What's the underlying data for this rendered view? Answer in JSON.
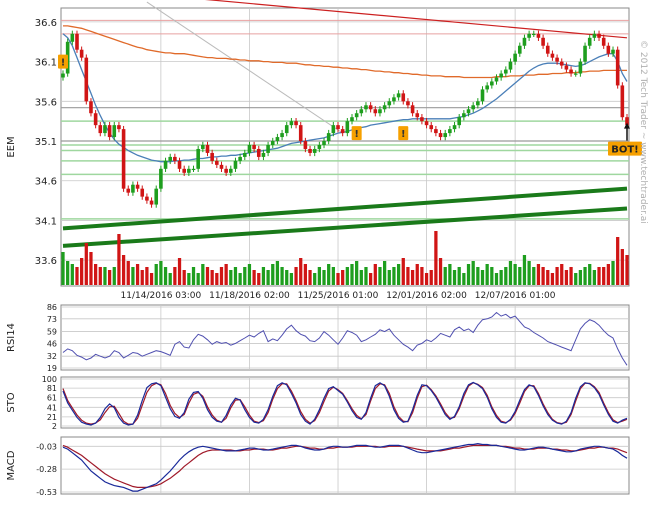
{
  "watermark": "© 2012 Tech Trader ~ www.techtrader.ai",
  "colors": {
    "up": "#1e9e1e",
    "down": "#d01515",
    "trend": "#1a7a1a",
    "ma_blue": "#4a7fb8",
    "ma_orange": "#e06a2a",
    "ma_red": "#cc2020",
    "rsi_line": "#5050b0",
    "sto_k": "#1a2a9a",
    "sto_d": "#a01a2a",
    "grid": "#c8c8c8",
    "marker": "#f6a000"
  },
  "chart_data": [
    {
      "type": "candlestick",
      "ylabel": "EEM",
      "ylim": [
        33.35,
        36.75
      ],
      "yticks": [
        33.6,
        34.1,
        34.6,
        35.1,
        35.6,
        36.1,
        36.6
      ],
      "xtick_labels": [
        "11/14/2016 03:00",
        "11/18/2016 02:00",
        "11/25/2016 01:00",
        "12/01/2016 02:00",
        "12/07/2016 01:00"
      ],
      "xtick_index": [
        21,
        40,
        59,
        78,
        97
      ],
      "bar_count": 122,
      "close": [
        35.95,
        36.35,
        36.45,
        36.25,
        36.15,
        35.6,
        35.45,
        35.3,
        35.2,
        35.3,
        35.15,
        35.3,
        35.25,
        34.5,
        34.45,
        34.55,
        34.5,
        34.4,
        34.35,
        34.3,
        34.5,
        34.75,
        34.85,
        34.9,
        34.85,
        34.75,
        34.7,
        34.75,
        34.75,
        35.0,
        35.05,
        34.95,
        34.85,
        34.8,
        34.75,
        34.7,
        34.75,
        34.85,
        34.9,
        34.95,
        35.05,
        35.0,
        34.9,
        34.95,
        35.05,
        35.1,
        35.15,
        35.2,
        35.3,
        35.35,
        35.3,
        35.1,
        35.0,
        34.95,
        35.0,
        35.05,
        35.1,
        35.2,
        35.3,
        35.25,
        35.2,
        35.35,
        35.4,
        35.45,
        35.5,
        35.55,
        35.5,
        35.45,
        35.5,
        35.55,
        35.6,
        35.65,
        35.7,
        35.6,
        35.55,
        35.45,
        35.4,
        35.35,
        35.3,
        35.25,
        35.2,
        35.15,
        35.2,
        35.25,
        35.3,
        35.4,
        35.45,
        35.5,
        35.55,
        35.6,
        35.75,
        35.8,
        35.85,
        35.9,
        35.95,
        36.0,
        36.1,
        36.2,
        36.3,
        36.4,
        36.45,
        36.45,
        36.4,
        36.3,
        36.2,
        36.15,
        36.1,
        36.05,
        36.0,
        35.95,
        35.95,
        36.1,
        36.3,
        36.4,
        36.45,
        36.4,
        36.3,
        36.2,
        36.25,
        35.8,
        35.4,
        35.3
      ]
    },
    {
      "type": "bar",
      "name": "volume",
      "bar_count": 122,
      "values": [
        0.55,
        0.4,
        0.35,
        0.3,
        0.45,
        0.7,
        0.55,
        0.35,
        0.3,
        0.3,
        0.25,
        0.3,
        0.85,
        0.5,
        0.4,
        0.3,
        0.35,
        0.25,
        0.3,
        0.2,
        0.35,
        0.4,
        0.3,
        0.2,
        0.3,
        0.45,
        0.25,
        0.2,
        0.3,
        0.2,
        0.35,
        0.3,
        0.25,
        0.2,
        0.3,
        0.35,
        0.25,
        0.3,
        0.2,
        0.3,
        0.35,
        0.25,
        0.2,
        0.3,
        0.25,
        0.35,
        0.4,
        0.3,
        0.25,
        0.2,
        0.3,
        0.45,
        0.35,
        0.25,
        0.2,
        0.3,
        0.25,
        0.35,
        0.3,
        0.2,
        0.25,
        0.3,
        0.35,
        0.4,
        0.25,
        0.3,
        0.2,
        0.35,
        0.3,
        0.4,
        0.25,
        0.3,
        0.35,
        0.45,
        0.3,
        0.25,
        0.35,
        0.3,
        0.2,
        0.25,
        0.9,
        0.45,
        0.3,
        0.35,
        0.25,
        0.3,
        0.2,
        0.35,
        0.4,
        0.3,
        0.25,
        0.35,
        0.3,
        0.2,
        0.25,
        0.3,
        0.4,
        0.35,
        0.3,
        0.5,
        0.4,
        0.3,
        0.35,
        0.3,
        0.25,
        0.2,
        0.3,
        0.35,
        0.25,
        0.3,
        0.2,
        0.25,
        0.3,
        0.35,
        0.25,
        0.3,
        0.3,
        0.35,
        0.4,
        0.8,
        0.6,
        0.5
      ]
    },
    {
      "type": "line",
      "ylabel": "RSI14",
      "ylim": [
        19,
        86
      ],
      "yticks": [
        19,
        32,
        46,
        59,
        73,
        86
      ],
      "bar_count": 122,
      "values": [
        36,
        40,
        38,
        33,
        31,
        28,
        30,
        34,
        32,
        30,
        32,
        38,
        36,
        30,
        33,
        36,
        35,
        32,
        34,
        36,
        38,
        37,
        35,
        33,
        45,
        48,
        42,
        41,
        50,
        56,
        54,
        50,
        45,
        48,
        46,
        47,
        44,
        46,
        49,
        52,
        55,
        53,
        57,
        60,
        48,
        51,
        49,
        55,
        62,
        66,
        60,
        56,
        54,
        49,
        48,
        52,
        59,
        55,
        50,
        45,
        52,
        60,
        58,
        55,
        48,
        50,
        53,
        56,
        61,
        59,
        62,
        55,
        50,
        45,
        42,
        38,
        44,
        46,
        50,
        48,
        52,
        57,
        55,
        53,
        61,
        64,
        60,
        62,
        58,
        66,
        72,
        73,
        75,
        80,
        76,
        78,
        74,
        76,
        70,
        64,
        62,
        58,
        55,
        52,
        48,
        46,
        44,
        42,
        40,
        38,
        50,
        62,
        68,
        72,
        70,
        66,
        60,
        55,
        52,
        40,
        30,
        22
      ]
    },
    {
      "type": "line",
      "ylabel": "STO",
      "ylim": [
        2,
        100
      ],
      "yticks": [
        2,
        21,
        41,
        61,
        81,
        100
      ],
      "bar_count": 122,
      "series": [
        {
          "values": [
            75,
            50,
            35,
            20,
            10,
            6,
            4,
            8,
            20,
            38,
            48,
            40,
            20,
            8,
            4,
            6,
            25,
            55,
            82,
            90,
            92,
            86,
            62,
            38,
            22,
            18,
            30,
            58,
            72,
            74,
            60,
            36,
            20,
            12,
            10,
            24,
            46,
            60,
            56,
            36,
            20,
            10,
            8,
            16,
            36,
            64,
            86,
            92,
            88,
            70,
            50,
            26,
            12,
            6,
            16,
            36,
            60,
            80,
            84,
            76,
            68,
            52,
            34,
            20,
            16,
            30,
            60,
            86,
            92,
            86,
            64,
            36,
            18,
            10,
            12,
            36,
            66,
            88,
            86,
            76,
            62,
            44,
            26,
            16,
            22,
            42,
            70,
            88,
            93,
            88,
            80,
            62,
            38,
            20,
            10,
            8,
            16,
            32,
            56,
            78,
            88,
            84,
            66,
            44,
            26,
            14,
            8,
            6,
            12,
            30,
            60,
            84,
            92,
            90,
            82,
            68,
            46,
            26,
            12,
            8,
            14,
            18
          ]
        },
        {
          "values": [
            80,
            55,
            40,
            25,
            14,
            8,
            6,
            8,
            15,
            30,
            42,
            43,
            28,
            12,
            6,
            6,
            18,
            45,
            72,
            86,
            91,
            88,
            70,
            45,
            28,
            20,
            26,
            50,
            68,
            72,
            64,
            42,
            25,
            14,
            10,
            18,
            40,
            56,
            57,
            42,
            25,
            12,
            9,
            13,
            30,
            58,
            80,
            90,
            90,
            75,
            55,
            32,
            16,
            8,
            13,
            30,
            53,
            75,
            83,
            78,
            70,
            55,
            38,
            24,
            17,
            26,
            54,
            80,
            90,
            88,
            70,
            42,
            22,
            12,
            11,
            30,
            60,
            84,
            87,
            78,
            65,
            48,
            30,
            18,
            20,
            38,
            64,
            85,
            92,
            89,
            82,
            66,
            42,
            24,
            12,
            9,
            14,
            28,
            50,
            74,
            86,
            86,
            70,
            48,
            30,
            16,
            9,
            7,
            10,
            26,
            54,
            80,
            91,
            91,
            84,
            72,
            50,
            30,
            15,
            9,
            12,
            16
          ]
        }
      ]
    },
    {
      "type": "line",
      "ylabel": "MACD",
      "ylim": [
        -0.53,
        0.05
      ],
      "yticks": [
        -0.53,
        -0.28,
        -0.03
      ],
      "bar_count": 122,
      "series": [
        {
          "values": [
            -0.04,
            -0.06,
            -0.1,
            -0.14,
            -0.18,
            -0.24,
            -0.3,
            -0.34,
            -0.38,
            -0.42,
            -0.44,
            -0.46,
            -0.47,
            -0.48,
            -0.5,
            -0.52,
            -0.52,
            -0.5,
            -0.48,
            -0.46,
            -0.44,
            -0.4,
            -0.35,
            -0.3,
            -0.24,
            -0.18,
            -0.13,
            -0.09,
            -0.06,
            -0.04,
            -0.03,
            -0.04,
            -0.05,
            -0.06,
            -0.07,
            -0.08,
            -0.08,
            -0.08,
            -0.07,
            -0.06,
            -0.05,
            -0.05,
            -0.06,
            -0.07,
            -0.07,
            -0.06,
            -0.05,
            -0.04,
            -0.03,
            -0.02,
            -0.02,
            -0.03,
            -0.05,
            -0.06,
            -0.07,
            -0.07,
            -0.06,
            -0.04,
            -0.03,
            -0.03,
            -0.04,
            -0.04,
            -0.03,
            -0.02,
            -0.02,
            -0.02,
            -0.03,
            -0.04,
            -0.04,
            -0.03,
            -0.02,
            -0.02,
            -0.02,
            -0.03,
            -0.05,
            -0.07,
            -0.09,
            -0.1,
            -0.1,
            -0.09,
            -0.08,
            -0.07,
            -0.06,
            -0.05,
            -0.04,
            -0.03,
            -0.02,
            -0.01,
            -0.01,
            0.0,
            -0.01,
            -0.01,
            -0.02,
            -0.02,
            -0.03,
            -0.04,
            -0.05,
            -0.06,
            -0.07,
            -0.07,
            -0.06,
            -0.05,
            -0.04,
            -0.04,
            -0.05,
            -0.06,
            -0.07,
            -0.08,
            -0.09,
            -0.09,
            -0.08,
            -0.06,
            -0.05,
            -0.04,
            -0.03,
            -0.03,
            -0.04,
            -0.05,
            -0.06,
            -0.09,
            -0.13,
            -0.16
          ]
        },
        {
          "values": [
            -0.02,
            -0.04,
            -0.07,
            -0.1,
            -0.13,
            -0.17,
            -0.21,
            -0.25,
            -0.29,
            -0.33,
            -0.36,
            -0.39,
            -0.41,
            -0.43,
            -0.45,
            -0.47,
            -0.48,
            -0.48,
            -0.48,
            -0.47,
            -0.46,
            -0.44,
            -0.41,
            -0.38,
            -0.34,
            -0.3,
            -0.25,
            -0.21,
            -0.17,
            -0.13,
            -0.1,
            -0.08,
            -0.07,
            -0.07,
            -0.07,
            -0.07,
            -0.07,
            -0.08,
            -0.08,
            -0.07,
            -0.07,
            -0.06,
            -0.06,
            -0.06,
            -0.07,
            -0.07,
            -0.06,
            -0.05,
            -0.05,
            -0.04,
            -0.03,
            -0.03,
            -0.04,
            -0.05,
            -0.05,
            -0.06,
            -0.06,
            -0.05,
            -0.05,
            -0.04,
            -0.04,
            -0.04,
            -0.04,
            -0.03,
            -0.03,
            -0.03,
            -0.03,
            -0.03,
            -0.04,
            -0.04,
            -0.03,
            -0.03,
            -0.03,
            -0.03,
            -0.04,
            -0.05,
            -0.06,
            -0.07,
            -0.08,
            -0.08,
            -0.08,
            -0.08,
            -0.07,
            -0.06,
            -0.05,
            -0.05,
            -0.04,
            -0.03,
            -0.02,
            -0.02,
            -0.02,
            -0.02,
            -0.02,
            -0.02,
            -0.03,
            -0.03,
            -0.04,
            -0.05,
            -0.05,
            -0.06,
            -0.06,
            -0.06,
            -0.05,
            -0.05,
            -0.05,
            -0.06,
            -0.06,
            -0.07,
            -0.07,
            -0.08,
            -0.08,
            -0.07,
            -0.06,
            -0.05,
            -0.05,
            -0.04,
            -0.04,
            -0.05,
            -0.05,
            -0.06,
            -0.08,
            -0.1
          ]
        }
      ]
    }
  ],
  "overlays": {
    "ma_blue": [
      36.45,
      36.4,
      36.3,
      36.15,
      36.0,
      35.85,
      35.7,
      35.55,
      35.42,
      35.3,
      35.2,
      35.12,
      35.06,
      35.02,
      34.98,
      34.95,
      34.92,
      34.9,
      34.88,
      34.86,
      34.85,
      34.84,
      34.84,
      34.84,
      34.85,
      34.85,
      34.86,
      34.86,
      34.87,
      34.88,
      34.88,
      34.89,
      34.9,
      34.9,
      34.91,
      34.91,
      34.92,
      34.92,
      34.93,
      34.94,
      34.95,
      34.96,
      34.97,
      34.98,
      34.99,
      35.0,
      35.01,
      35.03,
      35.05,
      35.07,
      35.08,
      35.09,
      35.1,
      35.11,
      35.12,
      35.13,
      35.14,
      35.16,
      35.18,
      35.2,
      35.21,
      35.22,
      35.24,
      35.25,
      35.27,
      35.28,
      35.3,
      35.31,
      35.32,
      35.33,
      35.34,
      35.35,
      35.36,
      35.37,
      35.37,
      35.38,
      35.38,
      35.38,
      35.38,
      35.38,
      35.38,
      35.38,
      35.38,
      35.38,
      35.39,
      35.4,
      35.41,
      35.43,
      35.45,
      35.48,
      35.51,
      35.55,
      35.59,
      35.63,
      35.68,
      35.73,
      35.78,
      35.83,
      35.88,
      35.93,
      35.98,
      36.02,
      36.05,
      36.07,
      36.08,
      36.08,
      36.08,
      36.07,
      36.06,
      36.05,
      36.04,
      36.05,
      36.07,
      36.1,
      36.13,
      36.16,
      36.18,
      36.2,
      36.2,
      36.1,
      35.95,
      35.85
    ],
    "ma_orange": [
      36.55,
      36.55,
      36.54,
      36.53,
      36.52,
      36.5,
      36.48,
      36.46,
      36.44,
      36.42,
      36.4,
      36.38,
      36.36,
      36.34,
      36.32,
      36.3,
      36.28,
      36.27,
      36.25,
      36.24,
      36.23,
      36.22,
      36.21,
      36.21,
      36.2,
      36.2,
      36.2,
      36.19,
      36.18,
      36.17,
      36.16,
      36.15,
      36.15,
      36.14,
      36.14,
      36.14,
      36.13,
      36.13,
      36.12,
      36.12,
      36.11,
      36.11,
      36.11,
      36.1,
      36.1,
      36.09,
      36.09,
      36.09,
      36.08,
      36.08,
      36.08,
      36.07,
      36.06,
      36.06,
      36.05,
      36.05,
      36.04,
      36.04,
      36.03,
      36.03,
      36.02,
      36.02,
      36.01,
      36.01,
      36.0,
      36.0,
      35.99,
      35.98,
      35.98,
      35.97,
      35.97,
      35.96,
      35.96,
      35.95,
      35.95,
      35.94,
      35.94,
      35.93,
      35.93,
      35.92,
      35.92,
      35.92,
      35.91,
      35.91,
      35.91,
      35.91,
      35.9,
      35.9,
      35.9,
      35.9,
      35.9,
      35.9,
      35.9,
      35.91,
      35.91,
      35.91,
      35.92,
      35.92,
      35.92,
      35.93,
      35.93,
      35.93,
      35.94,
      35.94,
      35.94,
      35.95,
      35.95,
      35.95,
      35.96,
      35.96,
      35.96,
      35.97,
      35.97,
      35.98,
      35.98,
      35.98,
      35.99,
      35.99,
      35.99,
      35.99,
      35.99,
      35.99
    ],
    "ma_red_start": [
      18,
      36.95
    ],
    "ma_red_end": [
      121,
      36.4
    ],
    "trendline_1": {
      "from": [
        0,
        33.78
      ],
      "to": [
        121,
        34.25
      ]
    },
    "trendline_2": {
      "from": [
        0,
        34.0
      ],
      "to": [
        121,
        34.5
      ]
    },
    "gray_line": {
      "from": [
        18,
        36.85
      ],
      "to": [
        60,
        35.2
      ]
    },
    "hlines_pink": [
      36.62,
      36.45
    ],
    "hlines_green": [
      35.35,
      35.05,
      34.98,
      34.85,
      34.68,
      34.12
    ],
    "hlines_gray": [
      35.52,
      35.1
    ]
  },
  "markers": [
    {
      "bar": 0,
      "price": 36.1,
      "label": "!"
    },
    {
      "bar": 63,
      "price": 35.2,
      "label": "!"
    },
    {
      "bar": 73,
      "price": 35.2,
      "label": "!"
    },
    {
      "bar": 121,
      "price": 35.03,
      "label": "BOT!"
    }
  ]
}
